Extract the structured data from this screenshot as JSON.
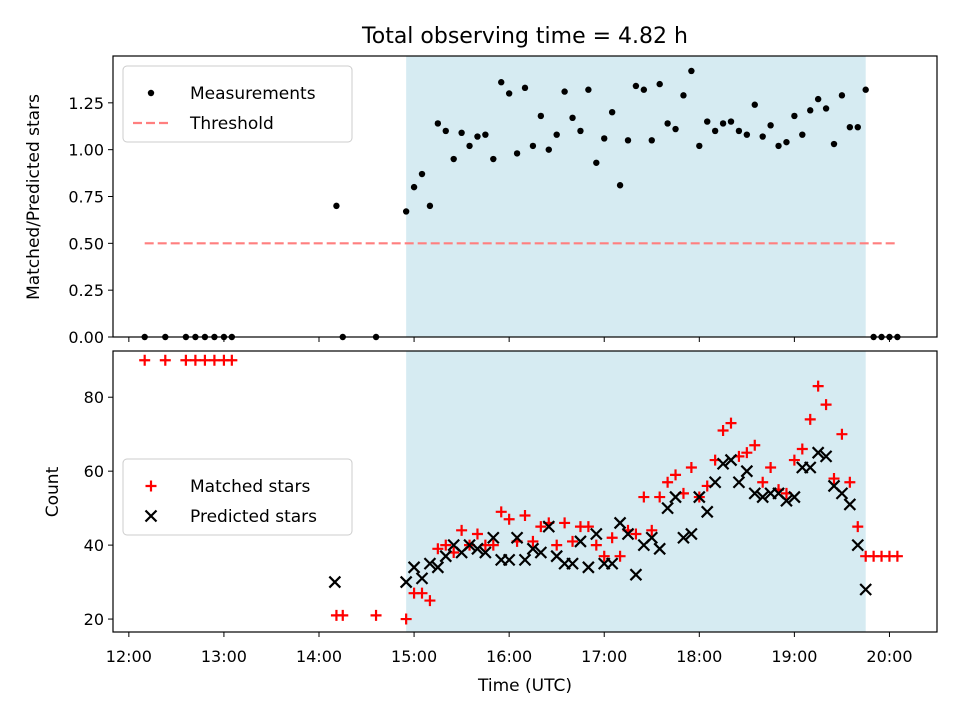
{
  "chart_data": [
    {
      "type": "scatter",
      "title": "Total observing time = 4.82 h",
      "xlabel": "",
      "ylabel": "Matched/Predicted stars",
      "xlim": [
        "11:50",
        "20:30"
      ],
      "ylim": [
        0,
        1.5
      ],
      "yticks": [
        "0.00",
        "0.25",
        "0.50",
        "0.75",
        "1.00",
        "1.25"
      ],
      "shaded_span": [
        "14:55",
        "19:45"
      ],
      "shaded_color": "#add8e6",
      "legend": {
        "location": "top-left",
        "entries": [
          {
            "name": "Measurements",
            "marker": "point",
            "color": "#000000"
          },
          {
            "name": "Threshold",
            "marker": "dashed-line",
            "color": "#ff7f7f"
          }
        ]
      },
      "threshold": {
        "name": "Threshold",
        "value": 0.5,
        "x_range": [
          "12:10",
          "20:05"
        ],
        "style": "dashed",
        "color": "#ff7f7f"
      },
      "series": [
        {
          "name": "Measurements",
          "marker": "point",
          "color": "#000000",
          "x": [
            "12:10",
            "12:23",
            "12:36",
            "12:42",
            "12:48",
            "12:54",
            "13:00",
            "13:05",
            "14:11",
            "14:15",
            "14:36",
            "14:55",
            "15:00",
            "15:05",
            "15:10",
            "15:15",
            "15:20",
            "15:25",
            "15:30",
            "15:35",
            "15:40",
            "15:45",
            "15:50",
            "15:55",
            "16:00",
            "16:05",
            "16:10",
            "16:15",
            "16:20",
            "16:25",
            "16:30",
            "16:35",
            "16:40",
            "16:45",
            "16:50",
            "16:55",
            "17:00",
            "17:05",
            "17:10",
            "17:15",
            "17:20",
            "17:25",
            "17:30",
            "17:35",
            "17:40",
            "17:45",
            "17:50",
            "17:55",
            "18:00",
            "18:05",
            "18:10",
            "18:15",
            "18:20",
            "18:25",
            "18:30",
            "18:35",
            "18:40",
            "18:45",
            "18:50",
            "18:55",
            "19:00",
            "19:05",
            "19:10",
            "19:15",
            "19:20",
            "19:25",
            "19:30",
            "19:35",
            "19:40",
            "19:45",
            "19:50",
            "19:55",
            "20:00",
            "20:05"
          ],
          "y": [
            0,
            0,
            0,
            0,
            0,
            0,
            0,
            0,
            0.7,
            0,
            0,
            0.67,
            0.8,
            0.87,
            0.7,
            1.14,
            1.1,
            0.95,
            1.09,
            1.02,
            1.07,
            1.08,
            0.95,
            1.36,
            1.3,
            0.98,
            1.33,
            1.02,
            1.18,
            1.0,
            1.08,
            1.31,
            1.17,
            1.1,
            1.32,
            0.93,
            1.06,
            1.2,
            0.81,
            1.05,
            1.34,
            1.32,
            1.05,
            1.35,
            1.14,
            1.11,
            1.29,
            1.42,
            1.02,
            1.15,
            1.1,
            1.14,
            1.15,
            1.1,
            1.08,
            1.24,
            1.07,
            1.13,
            1.02,
            1.04,
            1.18,
            1.08,
            1.21,
            1.27,
            1.22,
            1.03,
            1.29,
            1.12,
            1.12,
            1.32,
            0,
            0,
            0,
            0
          ]
        }
      ]
    },
    {
      "type": "scatter",
      "title": "",
      "xlabel": "Time (UTC)",
      "ylabel": "Count",
      "xlim": [
        "11:50",
        "20:30"
      ],
      "ylim": [
        16.5,
        92.5
      ],
      "yticks": [
        "20",
        "40",
        "60",
        "80"
      ],
      "xticks": [
        "12:00",
        "13:00",
        "14:00",
        "15:00",
        "16:00",
        "17:00",
        "18:00",
        "19:00",
        "20:00"
      ],
      "shaded_span": [
        "14:55",
        "19:45"
      ],
      "shaded_color": "#add8e6",
      "legend": {
        "location": "center-left",
        "entries": [
          {
            "name": "Matched stars",
            "marker": "plus",
            "color": "#ff0000"
          },
          {
            "name": "Predicted stars",
            "marker": "x",
            "color": "#000000"
          }
        ]
      },
      "series": [
        {
          "name": "Matched stars",
          "marker": "plus",
          "color": "#ff0000",
          "x": [
            "12:10",
            "12:23",
            "12:36",
            "12:42",
            "12:48",
            "12:54",
            "13:00",
            "13:05",
            "14:11",
            "14:15",
            "14:36",
            "14:55",
            "15:00",
            "15:05",
            "15:10",
            "15:15",
            "15:20",
            "15:25",
            "15:30",
            "15:35",
            "15:40",
            "15:45",
            "15:50",
            "15:55",
            "16:00",
            "16:05",
            "16:10",
            "16:15",
            "16:20",
            "16:25",
            "16:30",
            "16:35",
            "16:40",
            "16:45",
            "16:50",
            "16:55",
            "17:00",
            "17:05",
            "17:10",
            "17:15",
            "17:20",
            "17:25",
            "17:30",
            "17:35",
            "17:40",
            "17:45",
            "17:50",
            "17:55",
            "18:00",
            "18:05",
            "18:10",
            "18:15",
            "18:20",
            "18:25",
            "18:30",
            "18:35",
            "18:40",
            "18:45",
            "18:50",
            "18:55",
            "19:00",
            "19:05",
            "19:10",
            "19:15",
            "19:20",
            "19:25",
            "19:30",
            "19:35",
            "19:40",
            "19:45",
            "19:50",
            "19:55",
            "20:00",
            "20:05"
          ],
          "y": [
            90,
            90,
            90,
            90,
            90,
            90,
            90,
            90,
            21,
            21,
            21,
            20,
            27,
            27,
            25,
            39,
            40,
            38,
            44,
            40,
            43,
            40,
            40,
            49,
            47,
            41,
            48,
            41,
            45,
            46,
            40,
            46,
            41,
            45,
            45,
            40,
            37,
            42,
            37,
            44,
            43,
            53,
            44,
            53,
            57,
            59,
            54,
            61,
            53,
            56,
            63,
            71,
            73,
            64,
            65,
            67,
            57,
            61,
            55,
            54,
            63,
            66,
            74,
            83,
            78,
            58,
            70,
            57,
            45,
            37,
            37,
            37,
            37,
            37
          ]
        },
        {
          "name": "Predicted stars",
          "marker": "x",
          "color": "#000000",
          "x": [
            "14:10",
            "14:55",
            "15:00",
            "15:05",
            "15:10",
            "15:15",
            "15:20",
            "15:25",
            "15:30",
            "15:35",
            "15:40",
            "15:45",
            "15:50",
            "15:55",
            "16:00",
            "16:05",
            "16:10",
            "16:15",
            "16:20",
            "16:25",
            "16:30",
            "16:35",
            "16:40",
            "16:45",
            "16:50",
            "16:55",
            "17:00",
            "17:05",
            "17:10",
            "17:15",
            "17:20",
            "17:25",
            "17:30",
            "17:35",
            "17:40",
            "17:45",
            "17:50",
            "17:55",
            "18:00",
            "18:05",
            "18:10",
            "18:15",
            "18:20",
            "18:25",
            "18:30",
            "18:35",
            "18:40",
            "18:45",
            "18:50",
            "18:55",
            "19:00",
            "19:05",
            "19:10",
            "19:15",
            "19:20",
            "19:25",
            "19:30",
            "19:35",
            "19:40",
            "19:45"
          ],
          "y": [
            30,
            30,
            34,
            31,
            35,
            34,
            37,
            40,
            38,
            40,
            39,
            38,
            42,
            36,
            36,
            42,
            36,
            39,
            38,
            45,
            37,
            35,
            35,
            41,
            34,
            43,
            35,
            35,
            46,
            43,
            32,
            40,
            42,
            39,
            50,
            53,
            42,
            43,
            53,
            49,
            57,
            62,
            63,
            57,
            60,
            54,
            53,
            54,
            54,
            52,
            53,
            61,
            61,
            65,
            64,
            56,
            54,
            51,
            40,
            28
          ]
        }
      ]
    }
  ]
}
